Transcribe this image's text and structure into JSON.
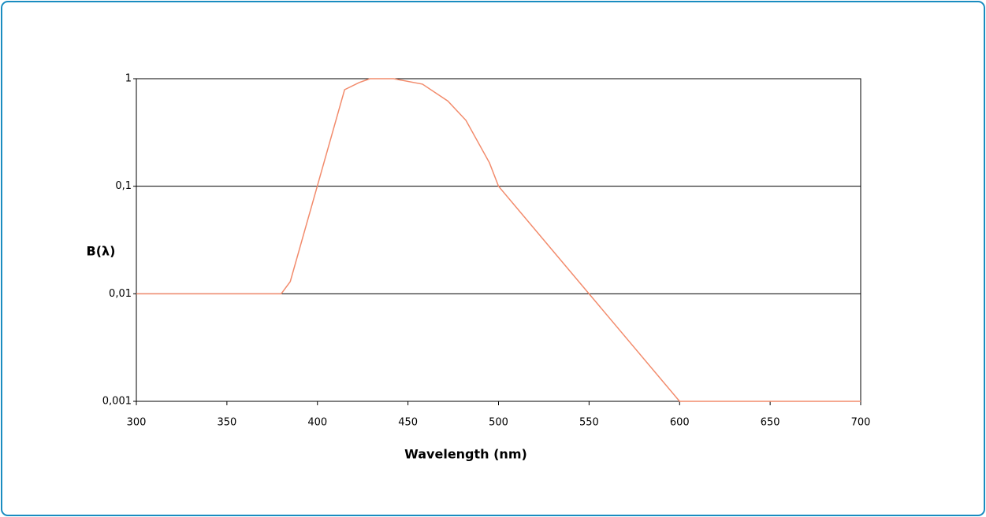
{
  "chart_data": {
    "type": "line",
    "x_label": "Wavelength (nm)",
    "y_label": "B(λ)",
    "log_y": true,
    "grid": true,
    "xlim": [
      300,
      700
    ],
    "xticks": [
      300,
      350,
      400,
      450,
      500,
      550,
      600,
      650,
      700
    ],
    "ylim": [
      0.001,
      1
    ],
    "yticks": [
      {
        "value": 0.001,
        "label": "0,001"
      },
      {
        "value": 0.01,
        "label": "0,01"
      },
      {
        "value": 0.1,
        "label": "0,1"
      },
      1
    ],
    "x": [
      300,
      380,
      385,
      415,
      423,
      429,
      442,
      458,
      472,
      482,
      495,
      500,
      550,
      600,
      700
    ],
    "series": [
      {
        "color": "#f28b6c",
        "values": [
          0.01,
          0.01,
          0.013,
          0.79,
          0.92,
          1,
          1,
          0.89,
          0.62,
          0.41,
          0.165,
          0.1,
          0.01,
          0.001,
          0.001
        ]
      }
    ]
  }
}
